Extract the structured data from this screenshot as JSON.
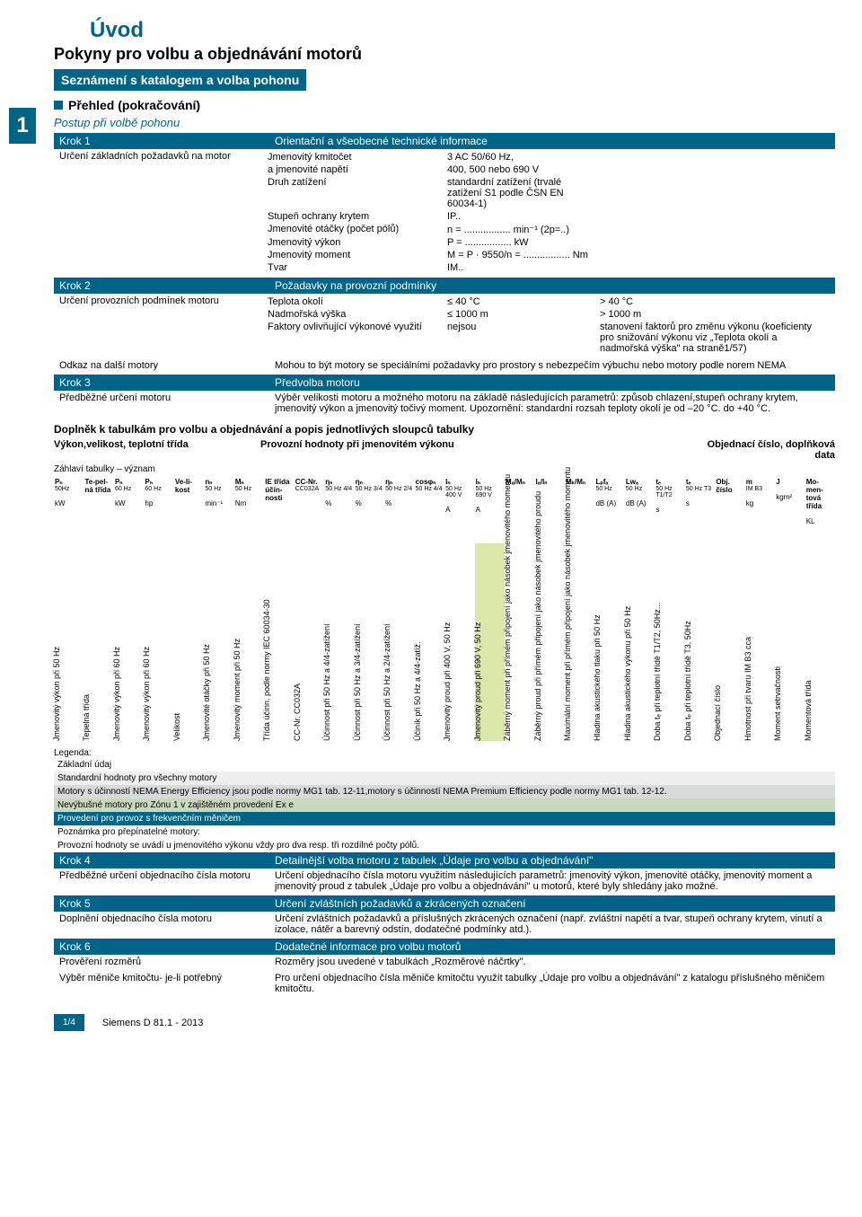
{
  "title_main": "Úvod",
  "title_sub": "Pokyny pro volbu a objednávání motorů",
  "title_bar": "Seznámení s katalogem a volba pohonu",
  "sidebar_num": "1",
  "section_title": "Přehled (pokračování)",
  "subtitle": "Postup při volbě pohonu",
  "steps": {
    "k1": {
      "header_l": "Krok 1",
      "header_r": "Orientační a všeobecné technické informace",
      "body_l": "Určení základních požadavků na motor",
      "rows": [
        [
          "Jmenovitý kmitočet",
          "3 AC 50/60 Hz,",
          ""
        ],
        [
          "a jmenovité napětí",
          "400, 500 nebo 690 V",
          ""
        ],
        [
          "Druh zatížení",
          "standardní zatížení (trvalé zatížení S1 podle ČSN EN 60034-1)",
          ""
        ],
        [
          "Stupeň ochrany krytem",
          "IP..",
          ""
        ],
        [
          "Jmenovité otáčky (počet pólů)",
          "n = ................. min⁻¹  (2p=..)",
          ""
        ],
        [
          "Jmenovitý výkon",
          "P = ................. kW",
          ""
        ],
        [
          "Jmenovitý moment",
          "M = P · 9550/n = ................. Nm",
          ""
        ],
        [
          "Tvar",
          "IM..",
          ""
        ]
      ]
    },
    "k2": {
      "header_l": "Krok 2",
      "header_r": "Požadavky na provozní podmínky",
      "body_l": "Určení provozních podmínek motoru",
      "rows": [
        [
          "Teplota okolí",
          "≤ 40 °C",
          "> 40 °C"
        ],
        [
          "Nadmořská výška",
          "≤ 1000 m",
          "> 1000 m"
        ],
        [
          "Faktory ovlivňující výkonové využití",
          "nejsou",
          "stanovení faktorů pro změnu výkonu (koeficienty pro snižování výkonu viz „Teplota okolí a nadmořská výška\" na straně1/57)"
        ]
      ],
      "extra_l": "Odkaz na další motory",
      "extra_r": "Mohou to být motory se speciálními požadavky pro prostory s nebezpečím výbuchu nebo motory podle norem NEMA"
    },
    "k3": {
      "header_l": "Krok 3",
      "header_r": "Předvolba motoru",
      "body_l": "Předběžné určení motoru",
      "body_r": "Výběr velikosti motoru a možného motoru na základě následujících parametrů: způsob chlazení,stupeň ochrany krytem, jmenovitý výkon a jmenovitý točivý moment. Upozornění: standardní rozsah teploty okolí je od –20 °C. do +40 °C."
    }
  },
  "sup_title": "Doplněk k tabulkám pro volbu a objednávání a popis jednotlivých sloupců tabulky",
  "hw1": "Výkon,velikost, teplotní třída",
  "hw2": "Provozní hodnoty při jmenovitém výkonu",
  "hw3": "Objednací číslo, doplňková data",
  "header_sub": "Záhlaví tabulky – význam",
  "cols": [
    {
      "h": "Pₙ",
      "s": "50Hz",
      "u": "kW"
    },
    {
      "h": "Te-pel-ná třída",
      "s": "",
      "u": ""
    },
    {
      "h": "Pₙ",
      "s": "60 Hz",
      "u": "kW"
    },
    {
      "h": "Pₙ",
      "s": "60 Hz",
      "u": "hp"
    },
    {
      "h": "Ve-li-kost",
      "s": "",
      "u": ""
    },
    {
      "h": "nₙ",
      "s": "50 Hz",
      "u": "min⁻¹"
    },
    {
      "h": "Mₙ",
      "s": "50 Hz",
      "u": "Nm"
    },
    {
      "h": "IE třída účin-nosti",
      "s": "",
      "u": ""
    },
    {
      "h": "CC-Nr.",
      "s": "CC032A",
      "u": ""
    },
    {
      "h": "ηₙ",
      "s": "50 Hz 4/4",
      "u": "%"
    },
    {
      "h": "ηₙ",
      "s": "50 Hz 3/4",
      "u": "%"
    },
    {
      "h": "ηₙ",
      "s": "50 Hz 2/4",
      "u": "%"
    },
    {
      "h": "cosφₙ",
      "s": "50 Hz 4/4",
      "u": ""
    },
    {
      "h": "Iₙ",
      "s": "50 Hz 400 V",
      "u": "A"
    },
    {
      "h": "Iₙ",
      "s": "50 Hz 690 V",
      "u": "A"
    },
    {
      "h": "Mₐ/Mₙ",
      "s": "",
      "u": ""
    },
    {
      "h": "Iₐ/Iₙ",
      "s": "",
      "u": ""
    },
    {
      "h": "Mₖ/Mₙ",
      "s": "",
      "u": ""
    },
    {
      "h": "Lₚfₐ",
      "s": "50 Hz",
      "u": "dB (A)"
    },
    {
      "h": "Lwₐ",
      "s": "50 Hz",
      "u": "dB (A)"
    },
    {
      "h": "tₑ",
      "s": "50 Hz T1/T2",
      "u": "s"
    },
    {
      "h": "tₑ",
      "s": "50 Hz T3",
      "u": "s"
    },
    {
      "h": "Obj. číslo",
      "s": "",
      "u": ""
    },
    {
      "h": "m",
      "s": "IM B3",
      "u": "kg"
    },
    {
      "h": "J",
      "s": "",
      "u": "kgm²"
    },
    {
      "h": "Mo-men-tová třída",
      "s": "",
      "u": "KL"
    }
  ],
  "vertical": [
    {
      "t": "Jmenovitý výkon při 50 Hz",
      "hl": 0
    },
    {
      "t": "Tepelná třída",
      "hl": 0
    },
    {
      "t": "Jmenovitý výkon při 60 Hz",
      "hl": 0
    },
    {
      "t": "Jmenovitý výkon při 60 Hz",
      "hl": 0
    },
    {
      "t": "Velikost",
      "hl": 0
    },
    {
      "t": "Jmenovité otáčky při 50 Hz",
      "hl": 0
    },
    {
      "t": "Jmenovitý moment při 50 Hz",
      "hl": 0
    },
    {
      "t": "Třída účinn. podle normy IEC 60034-30",
      "hl": 0
    },
    {
      "t": "CC-Nr. CC032A",
      "hl": 0
    },
    {
      "t": "Účinnost při 50 Hz a 4/4-zatížení",
      "hl": 0
    },
    {
      "t": "Účinnost při 50 Hz a 3/4-zatížení",
      "hl": 0
    },
    {
      "t": "Účinnost při 50 Hz a 2/4-zatížení",
      "hl": 0
    },
    {
      "t": "Účiník při 50 Hz a 4/4-zatíž.",
      "hl": 0
    },
    {
      "t": "Jmenovitý proud při 400 V, 50 Hz",
      "hl": 0
    },
    {
      "t": "Jmenovitý proud při 690 V, 50 Hz",
      "hl": 1
    },
    {
      "t": "Záběrný moment při přímém připojení jako násobek jmenovitého momentu",
      "hl": 0
    },
    {
      "t": "Záběrný proud při přímém připojení jako násobek jmenovitého proudu",
      "hl": 0
    },
    {
      "t": "Maximální moment při přímém připojení jako násobek jmenovitého momentu",
      "hl": 0
    },
    {
      "t": "Hladina akustického tlaku při 50 Hz",
      "hl": 0
    },
    {
      "t": "Hladina akustického výkonu při 50 Hz",
      "hl": 0
    },
    {
      "t": "Doba tₑ při teplotní třídě T1/T2, 50Hz...",
      "hl": 0
    },
    {
      "t": "Doba tₑ při teplotní třídě T3, 50Hz",
      "hl": 0
    },
    {
      "t": "Objednací číslo",
      "hl": 0
    },
    {
      "t": "Hmotnost při tvaru IM B3 cca",
      "hl": 0
    },
    {
      "t": "Moment setrvačnosti",
      "hl": 0
    },
    {
      "t": "Momentová třída",
      "hl": 0
    }
  ],
  "legend_title": "Legenda:",
  "legend": [
    {
      "t": "Základní údaj",
      "c": ""
    },
    {
      "t": "Standardní hodnoty pro všechny motory",
      "c": "leg-std"
    },
    {
      "t": "Motory s účinností NEMA Energy Efficiency jsou podle normy MG1 tab. 12-11,motory s účinností NEMA Premium Efficiency podle normy MG1 tab. 12-12.",
      "c": "leg-eff"
    },
    {
      "t": " Nevýbušné motory pro Zónu 1 v zajištěném provedení Ex e",
      "c": "leg-ex"
    },
    {
      "t": "Provedení pro provoz s frekvenčním měničem",
      "c": "leg-freq"
    },
    {
      "t": "Poznámka pro přepínatelné motory:",
      "c": ""
    },
    {
      "t": "Provozní hodnoty se uvádí u jmenovitého výkonu vždy pro dva resp. tři rozdílné počty pólů.",
      "c": ""
    }
  ],
  "steps2": {
    "k4": {
      "header_l": "Krok 4",
      "header_r": "Detailnější volba motoru z tabulek „Údaje pro volbu a objednávání\"",
      "body_l": "Předběžné určení objednacího čísla motoru",
      "body_r": "Určení objednacího čísla motoru využitím následujících parametrů: jmenovitý výkon, jmenovité otáčky, jmenovitý moment a jmenovitý proud z tabulek „Údaje pro volbu a objednávání\" u motorů, které byly shledány jako možné."
    },
    "k5": {
      "header_l": "Krok 5",
      "header_r": "Určení zvláštních požadavků a zkrácených označení",
      "body_l": "Doplnění objednacího čísla motoru",
      "body_r": "Určení zvláštních požadavků a příslušných zkrácených označení (např. zvláštní napětí a tvar, stupeň ochrany krytem, vinutí a izolace, nátěr a barevný odstín, dodatečné podmínky atd.)."
    },
    "k6": {
      "header_l": "Krok 6",
      "header_r": "Dodatečné informace pro volbu motorů",
      "body_l1": "Prověření rozměrů",
      "body_r1": "Rozměry jsou uvedené v tabulkách „Rozměrové náčrtky\".",
      "body_l2": "Výběr měniče kmitočtu- je-li potřebný",
      "body_r2": "Pro určení objednacího čísla měniče kmitočtu využít tabulky „Údaje pro volbu a objednávání\" z katalogu příslušného měničem kmitočtu."
    }
  },
  "page_num": "1/4",
  "page_text": "Siemens D 81.1 - 2013"
}
